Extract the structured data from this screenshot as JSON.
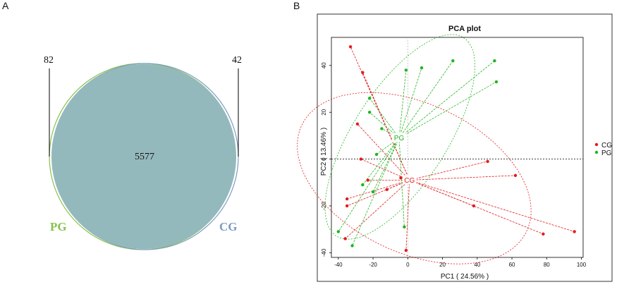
{
  "panels": {
    "a": "A",
    "b": "B"
  },
  "venn": {
    "pg_only": "82",
    "cg_only": "42",
    "shared": "5577",
    "pg_label": "PG",
    "cg_label": "CG",
    "pg_color": "#86c24a",
    "cg_color": "#7b9cc4",
    "fill_color": "#94b9bd"
  },
  "chart_data": {
    "type": "scatter",
    "title": "PCA plot",
    "xlabel": "PC1 ( 24.56% )",
    "ylabel": "PC2 ( 13.46% )",
    "xlim": [
      -44,
      101
    ],
    "ylim": [
      -42,
      52
    ],
    "xticks": [
      -40,
      -20,
      0,
      20,
      40,
      60,
      80,
      100
    ],
    "yticks": [
      -40,
      -20,
      0,
      20,
      40
    ],
    "grid": false,
    "legend_position": "right",
    "series": [
      {
        "name": "CG",
        "color": "#e31a1c",
        "centroid": [
          1,
          -9
        ],
        "points": [
          [
            -33,
            48
          ],
          [
            -26,
            37
          ],
          [
            -29,
            15
          ],
          [
            -27,
            0
          ],
          [
            -23,
            -9
          ],
          [
            -35,
            -17
          ],
          [
            -35,
            -20
          ],
          [
            -12,
            -13
          ],
          [
            -4,
            -8
          ],
          [
            -36,
            -34
          ],
          [
            -1,
            -39
          ],
          [
            46,
            -1
          ],
          [
            62,
            -7
          ],
          [
            38,
            -20
          ],
          [
            78,
            -32
          ],
          [
            96,
            -31
          ]
        ]
      },
      {
        "name": "PG",
        "color": "#1fb51f",
        "centroid": [
          -5,
          9
        ],
        "points": [
          [
            -1,
            38
          ],
          [
            8,
            39
          ],
          [
            26,
            42
          ],
          [
            50,
            42
          ],
          [
            51,
            33
          ],
          [
            -22,
            26
          ],
          [
            -22,
            20
          ],
          [
            -15,
            13
          ],
          [
            -18,
            2
          ],
          [
            -26,
            -11
          ],
          [
            -20,
            -14
          ],
          [
            -2,
            -29
          ],
          [
            -40,
            -31
          ],
          [
            -32,
            -37
          ]
        ]
      }
    ]
  }
}
